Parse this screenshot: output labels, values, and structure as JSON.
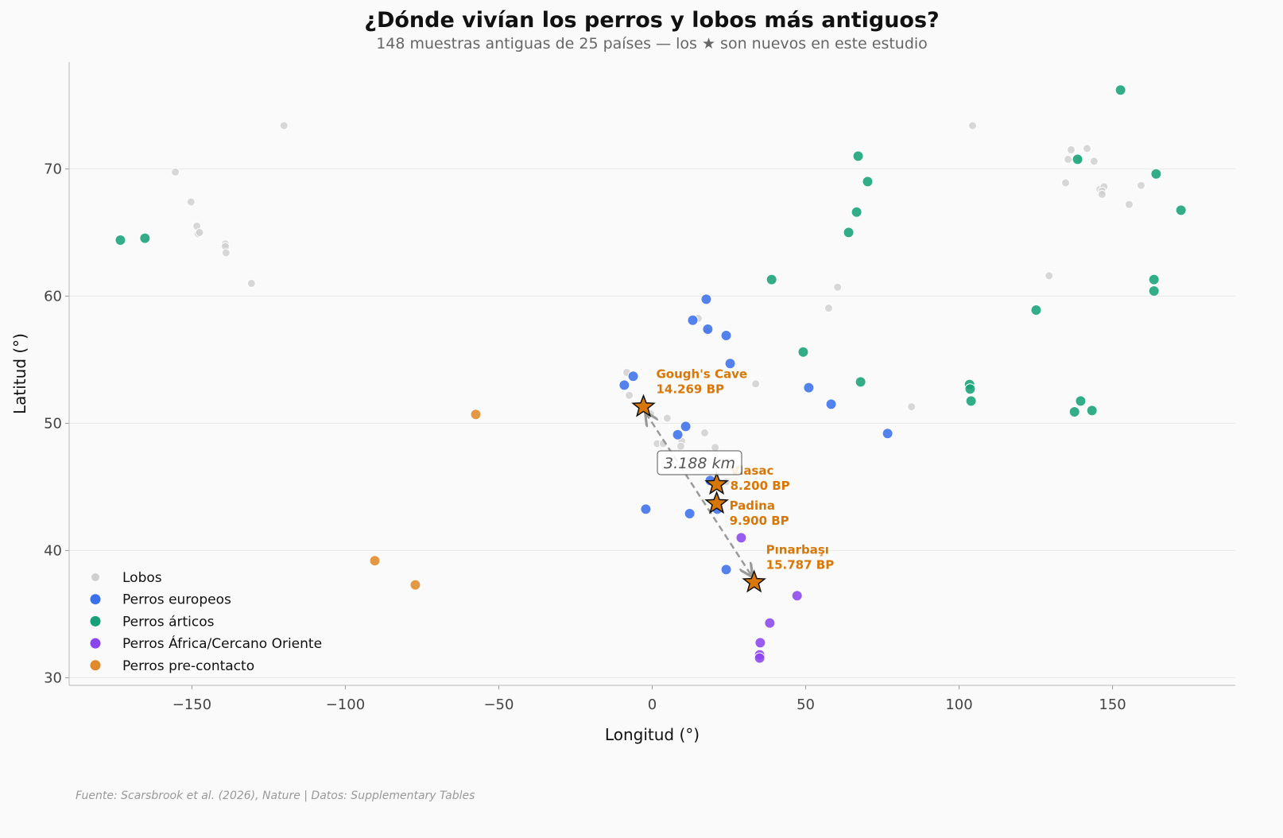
{
  "chart_data": {
    "type": "scatter",
    "title": "¿Dónde vivían los perros y lobos más antiguos?",
    "subtitle": "148 muestras antiguas de 25 países — los ★ son nuevos en este estudio",
    "xlabel": "Longitud (°)",
    "ylabel": "Latitud (°)",
    "xlim": [
      -190,
      190
    ],
    "ylim": [
      29.4,
      78.4
    ],
    "xticks": [
      -150,
      -100,
      -50,
      0,
      50,
      100,
      150
    ],
    "xtick_labels": [
      "−150",
      "−100",
      "−50",
      "0",
      "50",
      "100",
      "150"
    ],
    "yticks": [
      30,
      40,
      50,
      60,
      70
    ],
    "ytick_labels": [
      "30",
      "40",
      "50",
      "60",
      "70"
    ],
    "grid": "horizontal",
    "legend_position": "bottom-left",
    "series": [
      {
        "name": "Lobos",
        "color": "#d0d0d0",
        "points": [
          [
            -120,
            73.4
          ],
          [
            -155.4,
            69.75
          ],
          [
            -150.3,
            67.4
          ],
          [
            -148.4,
            65.5
          ],
          [
            -148,
            64.9
          ],
          [
            -147.5,
            65
          ],
          [
            -139.1,
            64.1
          ],
          [
            -139.1,
            63.9
          ],
          [
            -138.9,
            63.4
          ],
          [
            -130.6,
            61.0
          ],
          [
            104.4,
            73.4
          ],
          [
            136.5,
            71.5
          ],
          [
            141.7,
            71.6
          ],
          [
            135.5,
            70.75
          ],
          [
            139.4,
            70.75
          ],
          [
            144,
            70.6
          ],
          [
            134.7,
            68.9
          ],
          [
            145.9,
            68.4
          ],
          [
            147.2,
            68.6
          ],
          [
            146.6,
            68.25
          ],
          [
            146.6,
            68
          ],
          [
            159.3,
            68.7
          ],
          [
            155.4,
            67.2
          ],
          [
            129.3,
            61.6
          ],
          [
            60.4,
            60.7
          ],
          [
            57.5,
            59.05
          ],
          [
            33.7,
            53.1
          ],
          [
            84.5,
            51.3
          ],
          [
            15,
            58.25
          ],
          [
            17.9,
            57.2
          ],
          [
            -8.3,
            54
          ],
          [
            -7.5,
            52.2
          ],
          [
            4.9,
            50.4
          ],
          [
            1.6,
            48.4
          ],
          [
            3.6,
            48.4
          ],
          [
            9.6,
            48.6
          ],
          [
            9.3,
            48.2
          ],
          [
            17.1,
            49.25
          ],
          [
            20.5,
            48.1
          ],
          [
            24.1,
            45.4
          ],
          [
            -0.5,
            50.75
          ]
        ]
      },
      {
        "name": "Perros europeos",
        "color": "#3b70ec",
        "points": [
          [
            17.6,
            59.75
          ],
          [
            13.2,
            58.1
          ],
          [
            18.1,
            57.4
          ],
          [
            24.1,
            56.9
          ],
          [
            25.4,
            54.7
          ],
          [
            -6.2,
            53.7
          ],
          [
            -9.1,
            53
          ],
          [
            51,
            52.8
          ],
          [
            58.3,
            51.5
          ],
          [
            10.9,
            49.75
          ],
          [
            8.3,
            49.1
          ],
          [
            76.7,
            49.2
          ],
          [
            18.9,
            45.5
          ],
          [
            -2.1,
            43.25
          ],
          [
            12.2,
            42.9
          ],
          [
            21.2,
            43.25
          ],
          [
            24.1,
            38.5
          ]
        ]
      },
      {
        "name": "Perros árticos",
        "color": "#17a077",
        "points": [
          [
            152.6,
            76.2
          ],
          [
            67.1,
            71
          ],
          [
            70.2,
            69
          ],
          [
            138.6,
            70.75
          ],
          [
            164.2,
            69.6
          ],
          [
            172.3,
            66.75
          ],
          [
            66.6,
            66.6
          ],
          [
            64,
            65
          ],
          [
            -173.3,
            64.4
          ],
          [
            -165.3,
            64.55
          ],
          [
            38.9,
            61.3
          ],
          [
            163.5,
            61.3
          ],
          [
            163.5,
            60.4
          ],
          [
            125.1,
            58.9
          ],
          [
            49.2,
            55.6
          ],
          [
            67.9,
            53.25
          ],
          [
            103.4,
            53.05
          ],
          [
            103.6,
            52.7
          ],
          [
            103.9,
            51.75
          ],
          [
            139.6,
            51.75
          ],
          [
            143.3,
            51
          ],
          [
            137.6,
            50.9
          ]
        ]
      },
      {
        "name": "Perros África/Cercano Oriente",
        "color": "#8b45ee",
        "points": [
          [
            29,
            41
          ],
          [
            47.2,
            36.45
          ],
          [
            38.3,
            34.3
          ],
          [
            35.2,
            32.75
          ],
          [
            35,
            31.8
          ],
          [
            35,
            31.55
          ]
        ]
      },
      {
        "name": "Perros pre-contacto",
        "color": "#e08a2a",
        "points": [
          [
            -57.5,
            50.7
          ],
          [
            -90.4,
            39.2
          ],
          [
            -77.2,
            37.3
          ]
        ]
      }
    ],
    "new_samples": [
      {
        "site": "Gough's Cave",
        "age": "14.269 BP",
        "lon": -2.85,
        "lat": 51.3
      },
      {
        "site": "Vlasac",
        "age": "8.200 BP",
        "lon": 21,
        "lat": 45.2
      },
      {
        "site": "Padina",
        "age": "9.900 BP",
        "lon": 21,
        "lat": 43.7
      },
      {
        "site": "Pınarbaşı",
        "age": "15.787 BP",
        "lon": 33.2,
        "lat": 37.5
      }
    ],
    "star_color": "#d97706",
    "distance_label": "3.188 km"
  },
  "footer": "Fuente: Scarsbrook et al. (2026), Nature | Datos: Supplementary Tables"
}
